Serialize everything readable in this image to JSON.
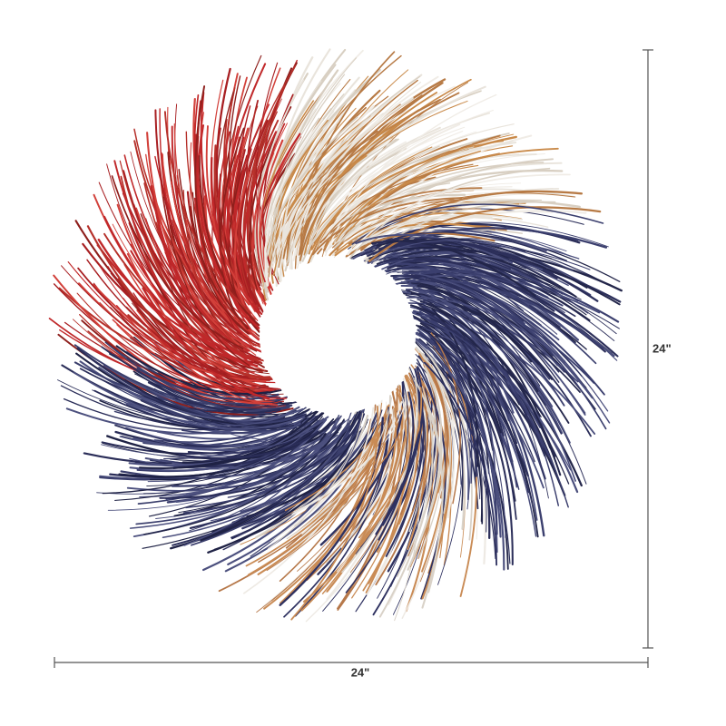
{
  "dimensions": {
    "height": {
      "label": "24\""
    },
    "width": {
      "label": "24\""
    }
  }
}
